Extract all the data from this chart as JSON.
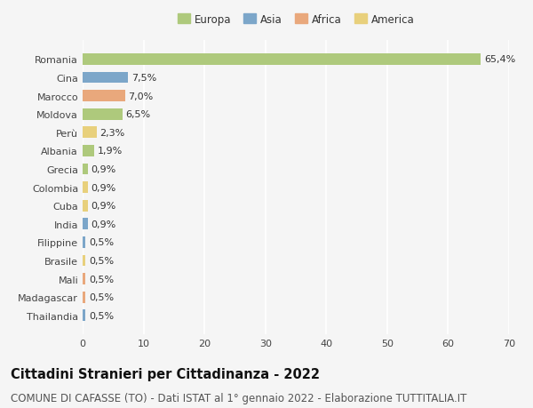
{
  "categories": [
    "Romania",
    "Cina",
    "Marocco",
    "Moldova",
    "Perù",
    "Albania",
    "Grecia",
    "Colombia",
    "Cuba",
    "India",
    "Filippine",
    "Brasile",
    "Mali",
    "Madagascar",
    "Thailandia"
  ],
  "values": [
    65.4,
    7.5,
    7.0,
    6.5,
    2.3,
    1.9,
    0.9,
    0.9,
    0.9,
    0.9,
    0.5,
    0.5,
    0.5,
    0.5,
    0.5
  ],
  "labels": [
    "65,4%",
    "7,5%",
    "7,0%",
    "6,5%",
    "2,3%",
    "1,9%",
    "0,9%",
    "0,9%",
    "0,9%",
    "0,9%",
    "0,5%",
    "0,5%",
    "0,5%",
    "0,5%",
    "0,5%"
  ],
  "continents": [
    "Europa",
    "Asia",
    "Africa",
    "Europa",
    "America",
    "Europa",
    "Europa",
    "America",
    "America",
    "Asia",
    "Asia",
    "America",
    "Africa",
    "Africa",
    "Asia"
  ],
  "continent_colors": {
    "Europa": "#aec97c",
    "Asia": "#7ca6c9",
    "Africa": "#e9a87c",
    "America": "#e8d07c"
  },
  "legend_items": [
    "Europa",
    "Asia",
    "Africa",
    "America"
  ],
  "xlim": [
    0,
    70
  ],
  "xticks": [
    0,
    10,
    20,
    30,
    40,
    50,
    60,
    70
  ],
  "background_color": "#f5f5f5",
  "grid_color": "#ffffff",
  "title": "Cittadini Stranieri per Cittadinanza - 2022",
  "subtitle": "COMUNE DI CAFASSE (TO) - Dati ISTAT al 1° gennaio 2022 - Elaborazione TUTTITALIA.IT",
  "title_fontsize": 10.5,
  "subtitle_fontsize": 8.5,
  "bar_height": 0.62,
  "label_fontsize": 8,
  "tick_fontsize": 8,
  "legend_fontsize": 8.5
}
